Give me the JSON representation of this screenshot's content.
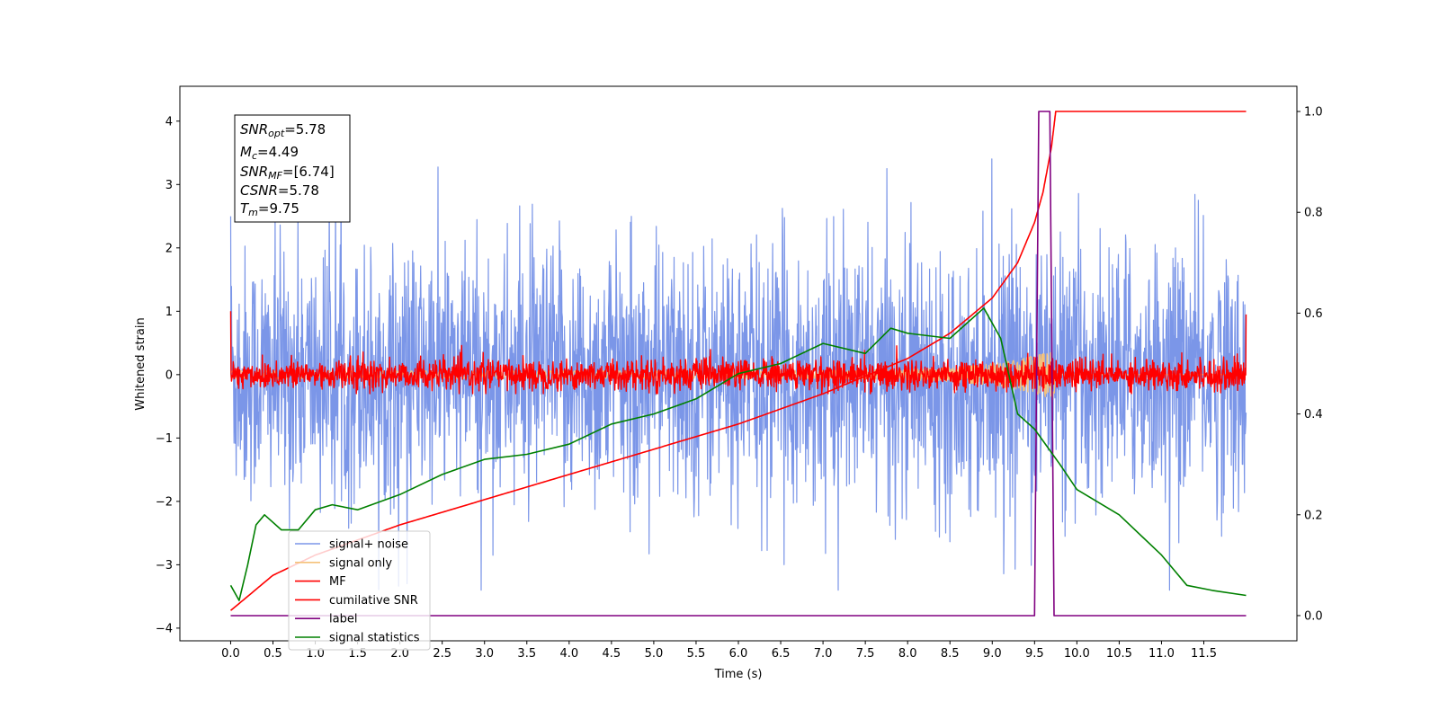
{
  "chart_data": {
    "type": "line",
    "xlabel": "Time (s)",
    "ylabel": "Whitened strain",
    "xlim": [
      -0.6,
      12.6
    ],
    "ylim": [
      -4.2,
      4.55
    ],
    "ylim_right": [
      -0.05,
      1.05
    ],
    "x_ticks": [
      "0.0",
      "0.5",
      "1.0",
      "1.5",
      "2.0",
      "2.5",
      "3.0",
      "3.5",
      "4.0",
      "4.5",
      "5.0",
      "5.5",
      "6.0",
      "6.5",
      "7.0",
      "7.5",
      "8.0",
      "8.5",
      "9.0",
      "9.5",
      "10.0",
      "10.5",
      "11.0",
      "11.5"
    ],
    "y_ticks": [
      "4",
      "3",
      "2",
      "1",
      "0",
      "−1",
      "−2",
      "−3",
      "−4"
    ],
    "y_right_ticks": [
      "1.0",
      "0.8",
      "0.6",
      "0.4",
      "0.2",
      "0.0"
    ],
    "legend_position": "lower-left",
    "annotation": {
      "snr_opt": "=5.78",
      "mc": "=4.49",
      "snr_mf": "=[6.74]",
      "csnr": "=5.78",
      "tm": "=9.75"
    },
    "series": [
      {
        "name": "signal+ noise",
        "color": "#7b96e8",
        "axis": "left",
        "kind": "noise",
        "x_range": [
          0,
          12
        ],
        "amplitude_std": 1.0
      },
      {
        "name": "signal only",
        "color": "#f5c27a",
        "axis": "left",
        "kind": "chirp",
        "x_range": [
          0,
          12
        ],
        "peak_time": 9.75
      },
      {
        "name": "MF",
        "color": "#ff0000",
        "axis": "left",
        "kind": "noise",
        "x_range": [
          0,
          12
        ],
        "amplitude_std": 0.12
      },
      {
        "name": "cumilative SNR",
        "color": "#ff0000",
        "axis": "right",
        "x": [
          0.0,
          0.5,
          1.0,
          1.5,
          2.0,
          2.5,
          3.0,
          3.5,
          4.0,
          4.5,
          5.0,
          5.5,
          6.0,
          6.5,
          7.0,
          7.5,
          8.0,
          8.5,
          9.0,
          9.3,
          9.5,
          9.6,
          9.7,
          9.75,
          10.0,
          11.0,
          12.0
        ],
        "y": [
          0.01,
          0.08,
          0.12,
          0.15,
          0.18,
          0.205,
          0.23,
          0.255,
          0.28,
          0.305,
          0.33,
          0.355,
          0.38,
          0.41,
          0.44,
          0.475,
          0.51,
          0.56,
          0.63,
          0.7,
          0.78,
          0.84,
          0.93,
          1.0,
          1.0,
          1.0,
          1.0
        ]
      },
      {
        "name": "label",
        "color": "#800080",
        "axis": "right",
        "x": [
          0.0,
          9.5,
          9.55,
          9.68,
          9.73,
          12.0
        ],
        "y": [
          0.0,
          0.0,
          1.0,
          1.0,
          0.0,
          0.0
        ]
      },
      {
        "name": "signal statistics",
        "color": "#008000",
        "axis": "right",
        "x": [
          0.0,
          0.1,
          0.2,
          0.3,
          0.4,
          0.6,
          0.8,
          1.0,
          1.2,
          1.5,
          2.0,
          2.5,
          3.0,
          3.5,
          4.0,
          4.5,
          5.0,
          5.5,
          6.0,
          6.5,
          7.0,
          7.5,
          7.8,
          8.0,
          8.5,
          8.9,
          9.1,
          9.3,
          9.5,
          9.8,
          10.0,
          10.5,
          11.0,
          11.3,
          11.6,
          12.0
        ],
        "y": [
          0.06,
          0.03,
          0.1,
          0.18,
          0.2,
          0.17,
          0.17,
          0.21,
          0.22,
          0.21,
          0.24,
          0.28,
          0.31,
          0.32,
          0.34,
          0.38,
          0.4,
          0.43,
          0.48,
          0.5,
          0.54,
          0.52,
          0.57,
          0.56,
          0.55,
          0.61,
          0.55,
          0.4,
          0.37,
          0.3,
          0.25,
          0.2,
          0.12,
          0.06,
          0.05,
          0.04
        ]
      }
    ]
  }
}
